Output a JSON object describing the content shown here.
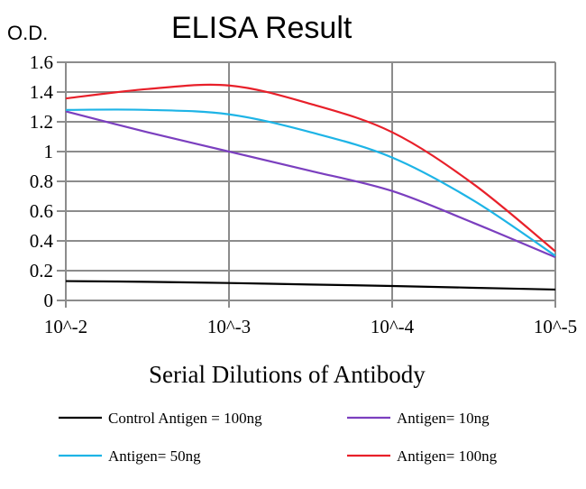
{
  "chart_data": {
    "type": "line",
    "title": "ELISA Result",
    "ylabel": "O.D.",
    "xlabel": "Serial Dilutions of Antibody",
    "ylim": [
      0,
      1.6
    ],
    "yticks": [
      "0",
      "0.2",
      "0.4",
      "0.6",
      "0.8",
      "1",
      "1.2",
      "1.4",
      "1.6"
    ],
    "xticks": [
      "10^-2",
      "10^-3",
      "10^-4",
      "10^-5"
    ],
    "xscale": "log",
    "x": [
      0.01,
      0.00316,
      0.001,
      0.000316,
      0.0001,
      3.16e-05,
      1e-05
    ],
    "grid": true,
    "legend_placement": "bottom",
    "series": [
      {
        "name": "Control Antigen = 100ng",
        "color": "#000000",
        "values": [
          0.13,
          0.125,
          0.117,
          0.107,
          0.097,
          0.085,
          0.073
        ]
      },
      {
        "name": "Antigen= 10ng",
        "color": "#7B3FBF",
        "values": [
          1.27,
          1.13,
          1.0,
          0.87,
          0.735,
          0.52,
          0.29
        ]
      },
      {
        "name": "Antigen= 50ng",
        "color": "#1EB4E6",
        "values": [
          1.28,
          1.28,
          1.25,
          1.13,
          0.96,
          0.67,
          0.3
        ]
      },
      {
        "name": "Antigen= 100ng",
        "color": "#E8202A",
        "values": [
          1.357,
          1.42,
          1.444,
          1.32,
          1.13,
          0.78,
          0.33
        ]
      }
    ]
  }
}
